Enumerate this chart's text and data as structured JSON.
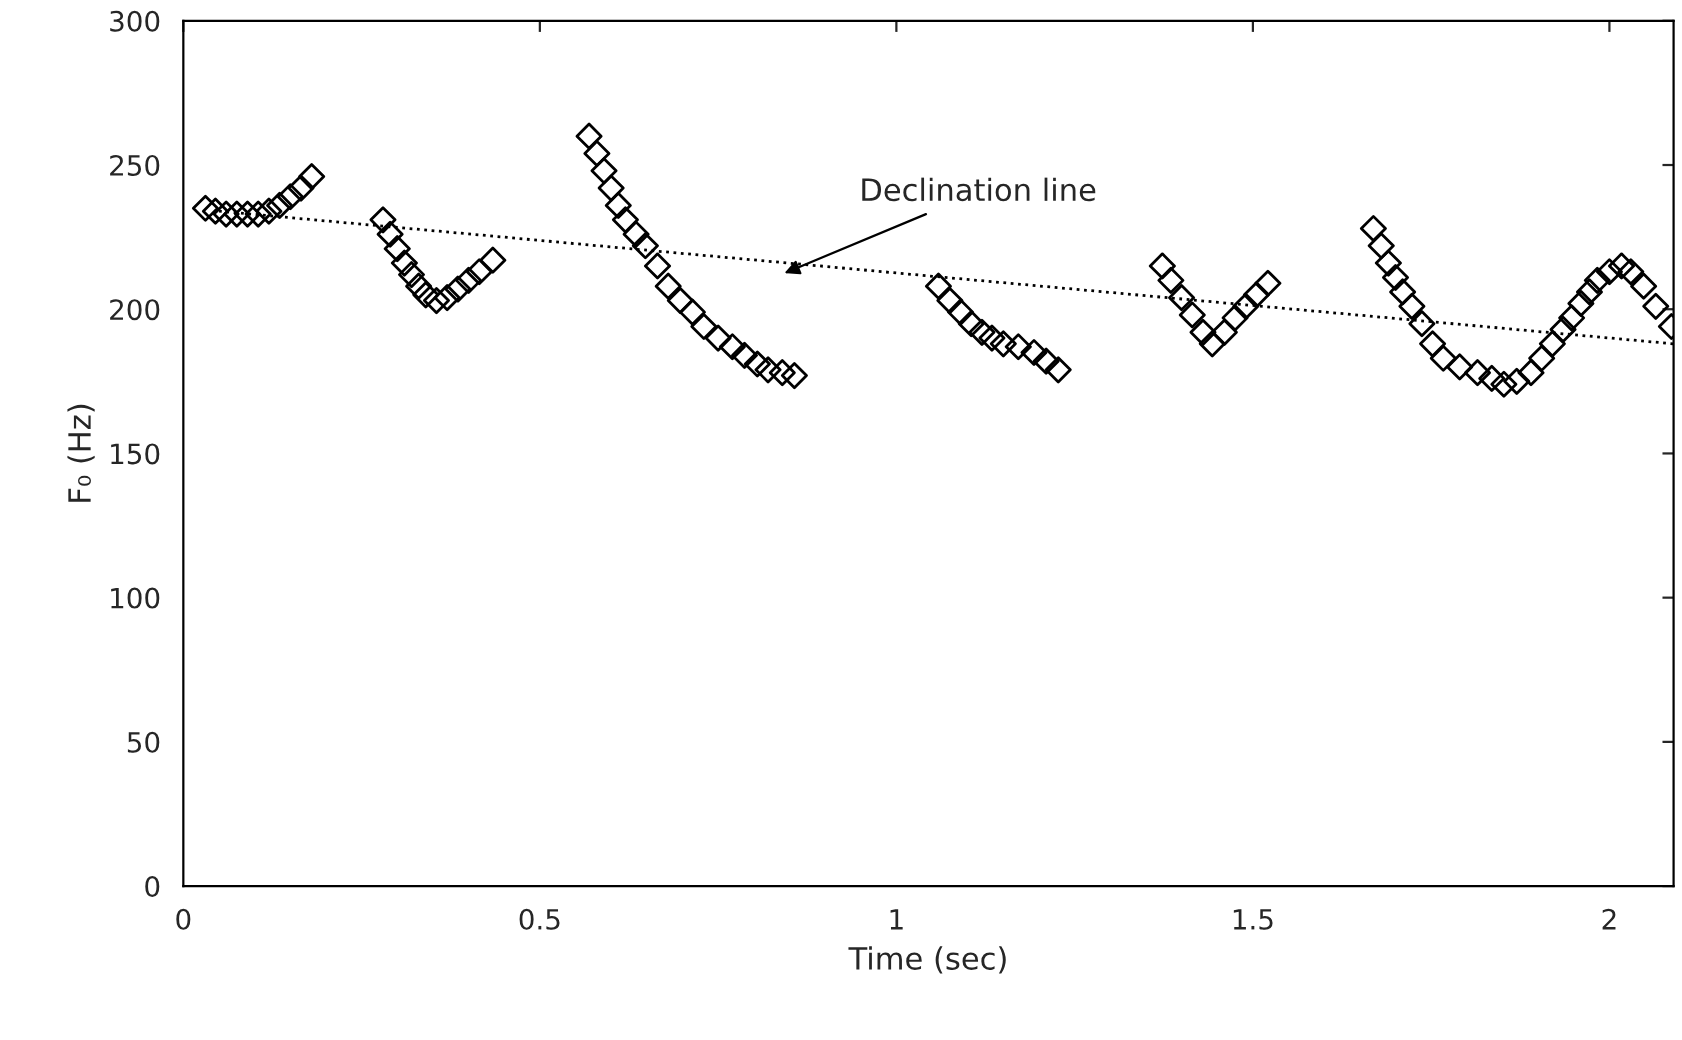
{
  "chart_data": {
    "type": "scatter",
    "xlabel": "Time (sec)",
    "ylabel": "F₀ (Hz)",
    "xlim": [
      0,
      2.09
    ],
    "ylim": [
      0,
      300
    ],
    "xticks": [
      0,
      0.5,
      1,
      1.5,
      2
    ],
    "yticks": [
      0,
      50,
      100,
      150,
      200,
      250,
      300
    ],
    "grid": false,
    "legend": false,
    "series": [
      {
        "marker": "diamond",
        "color": "#000000",
        "x": [
          0.031,
          0.045,
          0.06,
          0.075,
          0.09,
          0.105,
          0.12,
          0.135,
          0.15,
          0.165,
          0.18,
          0.28,
          0.29,
          0.3,
          0.31,
          0.32,
          0.33,
          0.34,
          0.355,
          0.37,
          0.385,
          0.4,
          0.415,
          0.434,
          0.569,
          0.58,
          0.59,
          0.6,
          0.61,
          0.62,
          0.635,
          0.648,
          0.665,
          0.68,
          0.697,
          0.714,
          0.73,
          0.75,
          0.77,
          0.787,
          0.805,
          0.82,
          0.84,
          0.857,
          1.059,
          1.075,
          1.09,
          1.105,
          1.12,
          1.134,
          1.15,
          1.171,
          1.193,
          1.21,
          1.227,
          1.373,
          1.385,
          1.4,
          1.415,
          1.43,
          1.443,
          1.46,
          1.475,
          1.49,
          1.505,
          1.521,
          1.669,
          1.68,
          1.69,
          1.7,
          1.71,
          1.723,
          1.737,
          1.752,
          1.767,
          1.79,
          1.815,
          1.835,
          1.852,
          1.87,
          1.89,
          1.905,
          1.92,
          1.935,
          1.947,
          1.96,
          1.972,
          1.983,
          2.0,
          2.017,
          2.03,
          2.048,
          2.065,
          2.087
        ],
        "values": [
          235,
          234,
          233,
          233,
          233,
          233,
          234,
          236,
          239,
          242,
          246,
          231,
          226,
          221,
          216,
          212,
          208,
          205,
          203,
          204,
          207,
          210,
          213,
          217,
          260,
          254,
          248,
          242,
          236,
          231,
          226,
          222,
          215,
          208,
          203,
          199,
          194,
          190,
          187,
          184,
          181,
          179,
          178,
          177,
          208,
          203,
          199,
          195,
          192,
          190,
          188,
          187,
          185,
          182,
          179,
          215,
          210,
          204,
          198,
          192,
          188,
          192,
          197,
          201,
          205,
          209,
          228,
          222,
          216,
          211,
          206,
          201,
          195,
          188,
          183,
          180,
          178,
          176,
          174,
          175,
          178,
          183,
          188,
          193,
          197,
          202,
          206,
          210,
          213,
          215,
          213,
          208,
          201,
          194
        ]
      },
      {
        "type": "line",
        "marker": "none",
        "line_style": "dotted",
        "color": "#000000",
        "x": [
          0.05,
          2.09
        ],
        "values": [
          234,
          188
        ]
      }
    ],
    "annotations": [
      {
        "text": "Declination line",
        "x": 0.843,
        "y": 212.5
      }
    ]
  }
}
